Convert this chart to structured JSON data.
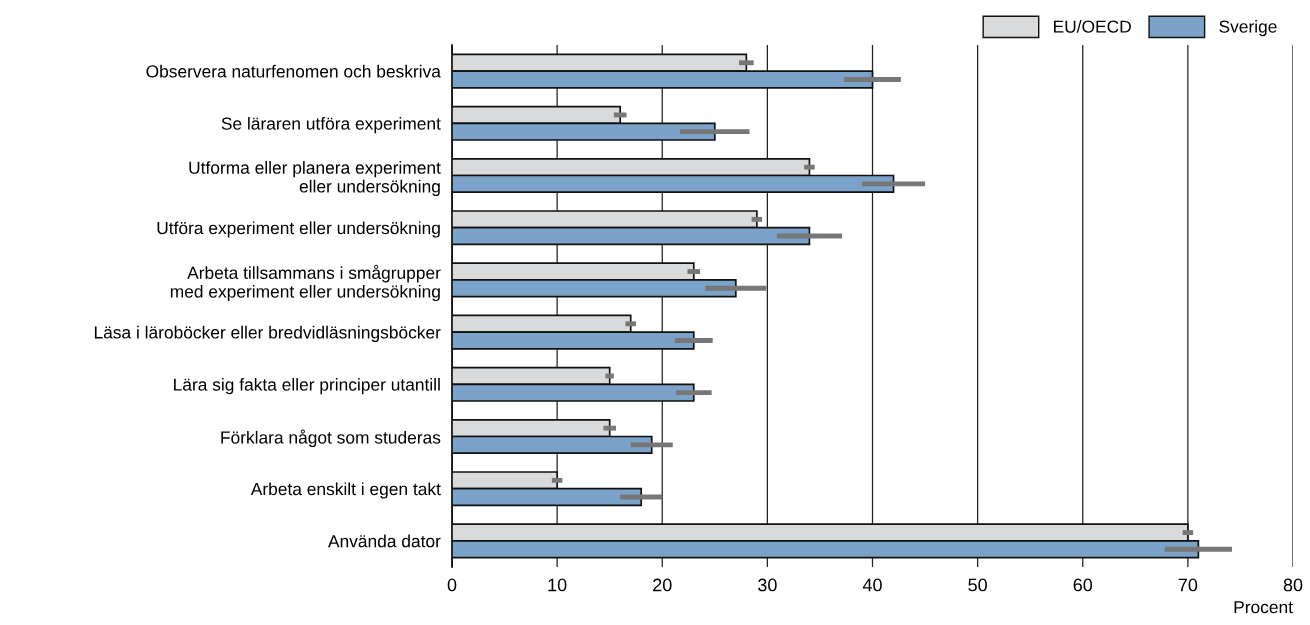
{
  "chart_data": {
    "type": "bar",
    "orientation": "horizontal",
    "xlabel": "Procent",
    "categories": [
      "Observera naturfenomen och beskriva",
      "Se läraren utföra experiment",
      "Utforma eller planera experiment\neller undersökning",
      "Utföra experiment eller undersökning",
      "Arbeta tillsammans i smågrupper\nmed experiment eller undersökning",
      "Läsa i läroböcker eller bredvidläsningsböcker",
      "Lära sig fakta eller principer utantill",
      "Förklara något som studeras",
      "Arbeta enskilt i egen takt",
      "Använda dator"
    ],
    "series": [
      {
        "name": "EU/OECD",
        "color": "#d9dadc",
        "values": [
          28,
          16,
          34,
          29,
          23,
          17,
          15,
          15,
          10,
          70
        ],
        "errors": [
          0.7,
          0.6,
          0.5,
          0.5,
          0.6,
          0.5,
          0.4,
          0.6,
          0.5,
          0.5
        ]
      },
      {
        "name": "Sverige",
        "color": "#7ba3c9",
        "values": [
          40,
          25,
          42,
          34,
          27,
          23,
          23,
          19,
          18,
          71
        ],
        "errors": [
          2.7,
          3.3,
          3.0,
          3.1,
          2.9,
          1.8,
          1.7,
          2.0,
          2.0,
          3.2
        ]
      }
    ],
    "xlim": [
      0,
      80
    ],
    "xticks": [
      0,
      10,
      20,
      30,
      40,
      50,
      60,
      70,
      80
    ],
    "grid": "x",
    "legend": "top right"
  }
}
